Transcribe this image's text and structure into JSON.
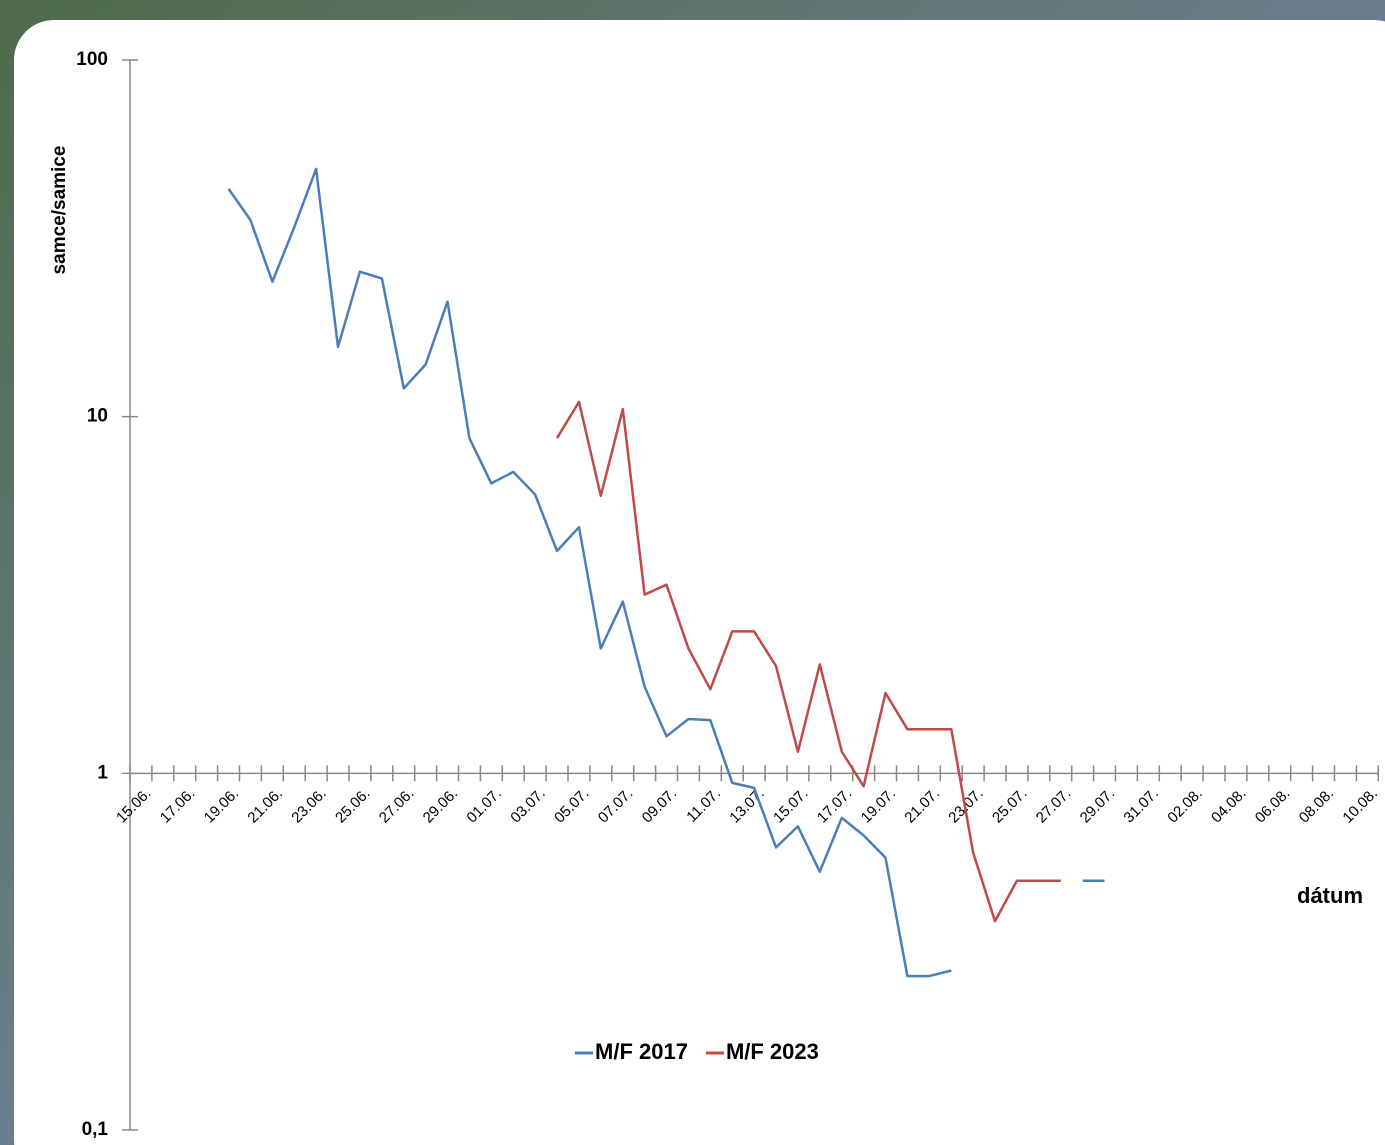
{
  "chart_data": {
    "type": "line",
    "ylabel": "samce/samice",
    "xlabel": "dátum",
    "log_scale": true,
    "ylim": [
      0.1,
      100
    ],
    "yticks": [
      {
        "value": 0.1,
        "label": "0,1"
      },
      1,
      10,
      100
    ],
    "legend": "bottom",
    "categories": [
      "15.06.",
      null,
      "17.06.",
      null,
      "19.06.",
      null,
      "21.06.",
      null,
      "23.06.",
      null,
      "25.06.",
      null,
      "27.06.",
      null,
      "29.06.",
      null,
      "01.07.",
      null,
      "03.07.",
      null,
      "05.07.",
      null,
      "07.07.",
      null,
      "09.07.",
      null,
      "11.07.",
      null,
      "13.07.",
      null,
      "15.07.",
      null,
      "17.07.",
      null,
      "19.07.",
      null,
      "21.07.",
      null,
      "23.07.",
      null,
      "25.07.",
      null,
      "27.07.",
      null,
      "29.07.",
      null,
      "31.07.",
      null,
      "02.08.",
      null,
      "04.08.",
      null,
      "06.08.",
      null,
      "08.08.",
      null,
      "10.08."
    ],
    "series": [
      {
        "name": "M/F 2017",
        "color": "#4a7ebb",
        "values": [
          null,
          null,
          null,
          null,
          43.5,
          35.6,
          23.9,
          34,
          49.5,
          15.7,
          25.5,
          24.4,
          12,
          14,
          21,
          8.7,
          6.5,
          7.0,
          6.05,
          4.2,
          4.9,
          2.24,
          3.03,
          1.75,
          1.27,
          1.42,
          1.41,
          0.94,
          0.91,
          0.62,
          0.71,
          0.53,
          0.75,
          0.67,
          0.58,
          0.27,
          0.27,
          0.28,
          null,
          null,
          null,
          null,
          null,
          0.5,
          0.5,
          null,
          null,
          null,
          null,
          null,
          null,
          null,
          null,
          null,
          null,
          null,
          null
        ]
      },
      {
        "name": "M/F 2023",
        "color": "#be4b48",
        "values": [
          null,
          null,
          null,
          null,
          null,
          null,
          null,
          null,
          null,
          null,
          null,
          null,
          null,
          null,
          null,
          null,
          null,
          null,
          null,
          8.7,
          11,
          6.0,
          10.5,
          3.17,
          3.38,
          2.24,
          1.72,
          2.5,
          2.5,
          2.0,
          1.15,
          2.02,
          1.15,
          0.92,
          1.68,
          1.33,
          1.33,
          1.33,
          0.6,
          0.385,
          0.5,
          0.5,
          0.5,
          null,
          null,
          null,
          null,
          null,
          null,
          null,
          null,
          null,
          null,
          null,
          null,
          null,
          null
        ]
      }
    ]
  }
}
